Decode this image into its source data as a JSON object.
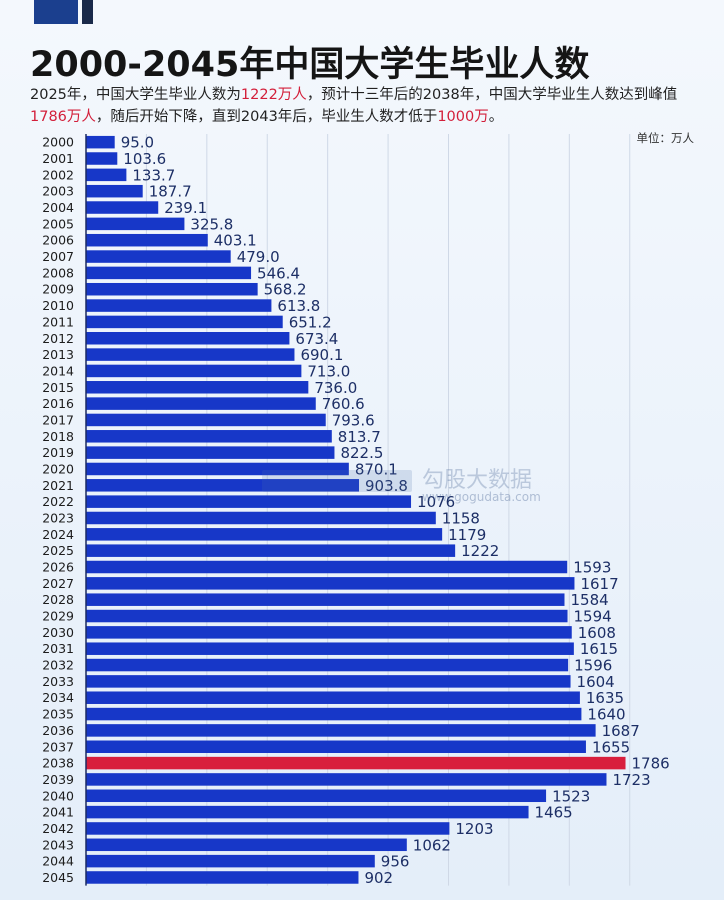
{
  "header": {
    "title": "2000-2045年中国大学生毕业人数",
    "subtitle": {
      "part1": "2025年，中国大学生毕业人数为",
      "hl1": "1222万人",
      "part2": "，预计十三年后的2038年，中国大学毕业生人数达到峰值",
      "hl2": "1786万人",
      "part3": "，随后开始下降，直到2043年后，毕业生人数才低于",
      "hl3": "1000万",
      "part4": "。"
    },
    "unit": "单位：万人"
  },
  "watermark": {
    "brand": "勾股大数据",
    "site": "www.gogudata.com"
  },
  "colors": {
    "bar": "#1737c8",
    "highlight": "#d81f3d",
    "grid": "#cfd8e6",
    "baseline": "#1b2a63"
  },
  "chart_data": {
    "type": "bar",
    "orientation": "horizontal",
    "title": "2000-2045年中国大学生毕业人数",
    "unit": "万人",
    "xlim": [
      0,
      1900
    ],
    "highlight_category": "2038",
    "categories": [
      "2000",
      "2001",
      "2002",
      "2003",
      "2004",
      "2005",
      "2006",
      "2007",
      "2008",
      "2009",
      "2010",
      "2011",
      "2012",
      "2013",
      "2014",
      "2015",
      "2016",
      "2017",
      "2018",
      "2019",
      "2020",
      "2021",
      "2022",
      "2023",
      "2024",
      "2025",
      "2026",
      "2027",
      "2028",
      "2029",
      "2030",
      "2031",
      "2032",
      "2033",
      "2034",
      "2035",
      "2036",
      "2037",
      "2038",
      "2039",
      "2040",
      "2041",
      "2042",
      "2043",
      "2044",
      "2045"
    ],
    "values": [
      95.0,
      103.6,
      133.7,
      187.7,
      239.1,
      325.8,
      403.1,
      479.0,
      546.4,
      568.2,
      613.8,
      651.2,
      673.4,
      690.1,
      713.0,
      736.0,
      760.6,
      793.6,
      813.7,
      822.5,
      870.1,
      903.8,
      1076,
      1158,
      1179,
      1222,
      1593,
      1617,
      1584,
      1594,
      1608,
      1615,
      1596,
      1604,
      1635,
      1640,
      1687,
      1655,
      1786,
      1723,
      1523,
      1465,
      1203,
      1062,
      956,
      902
    ],
    "value_labels": [
      "95.0",
      "103.6",
      "133.7",
      "187.7",
      "239.1",
      "325.8",
      "403.1",
      "479.0",
      "546.4",
      "568.2",
      "613.8",
      "651.2",
      "673.4",
      "690.1",
      "713.0",
      "736.0",
      "760.6",
      "793.6",
      "813.7",
      "822.5",
      "870.1",
      "903.8",
      "1076",
      "1158",
      "1179",
      "1222",
      "1593",
      "1617",
      "1584",
      "1594",
      "1608",
      "1615",
      "1596",
      "1604",
      "1635",
      "1640",
      "1687",
      "1655",
      "1786",
      "1723",
      "1523",
      "1465",
      "1203",
      "1062",
      "956",
      "902"
    ]
  }
}
